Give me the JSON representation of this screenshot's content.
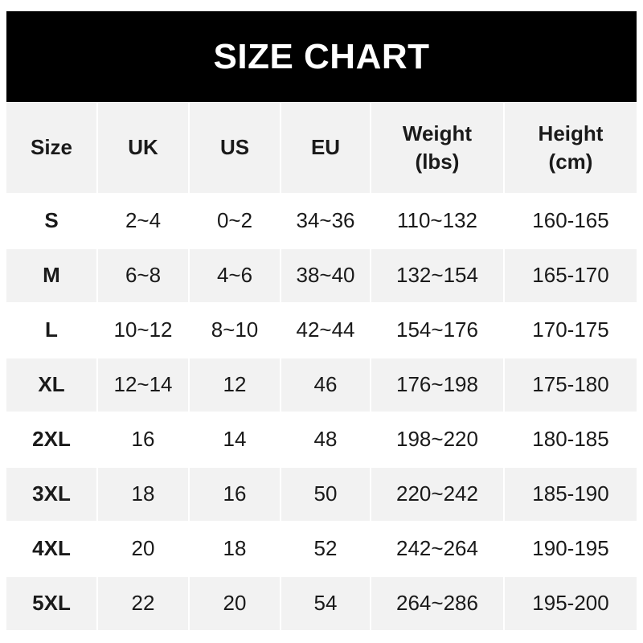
{
  "title": "SIZE CHART",
  "chart_data": {
    "type": "table",
    "title": "SIZE CHART",
    "columns": [
      "Size",
      "UK",
      "US",
      "EU",
      "Weight\n(lbs)",
      "Height\n(cm)"
    ],
    "rows": [
      [
        "S",
        "2~4",
        "0~2",
        "34~36",
        "110~132",
        "160-165"
      ],
      [
        "M",
        "6~8",
        "4~6",
        "38~40",
        "132~154",
        "165-170"
      ],
      [
        "L",
        "10~12",
        "8~10",
        "42~44",
        "154~176",
        "170-175"
      ],
      [
        "XL",
        "12~14",
        "12",
        "46",
        "176~198",
        "175-180"
      ],
      [
        "2XL",
        "16",
        "14",
        "48",
        "198~220",
        "180-185"
      ],
      [
        "3XL",
        "18",
        "16",
        "50",
        "220~242",
        "185-190"
      ],
      [
        "4XL",
        "20",
        "18",
        "52",
        "242~264",
        "190-195"
      ],
      [
        "5XL",
        "22",
        "20",
        "54",
        "264~286",
        "195-200"
      ]
    ]
  },
  "colors": {
    "header_bg": "#000000",
    "header_text": "#ffffff",
    "stripe": "#f2f2f2",
    "text": "#1a1a1a"
  }
}
